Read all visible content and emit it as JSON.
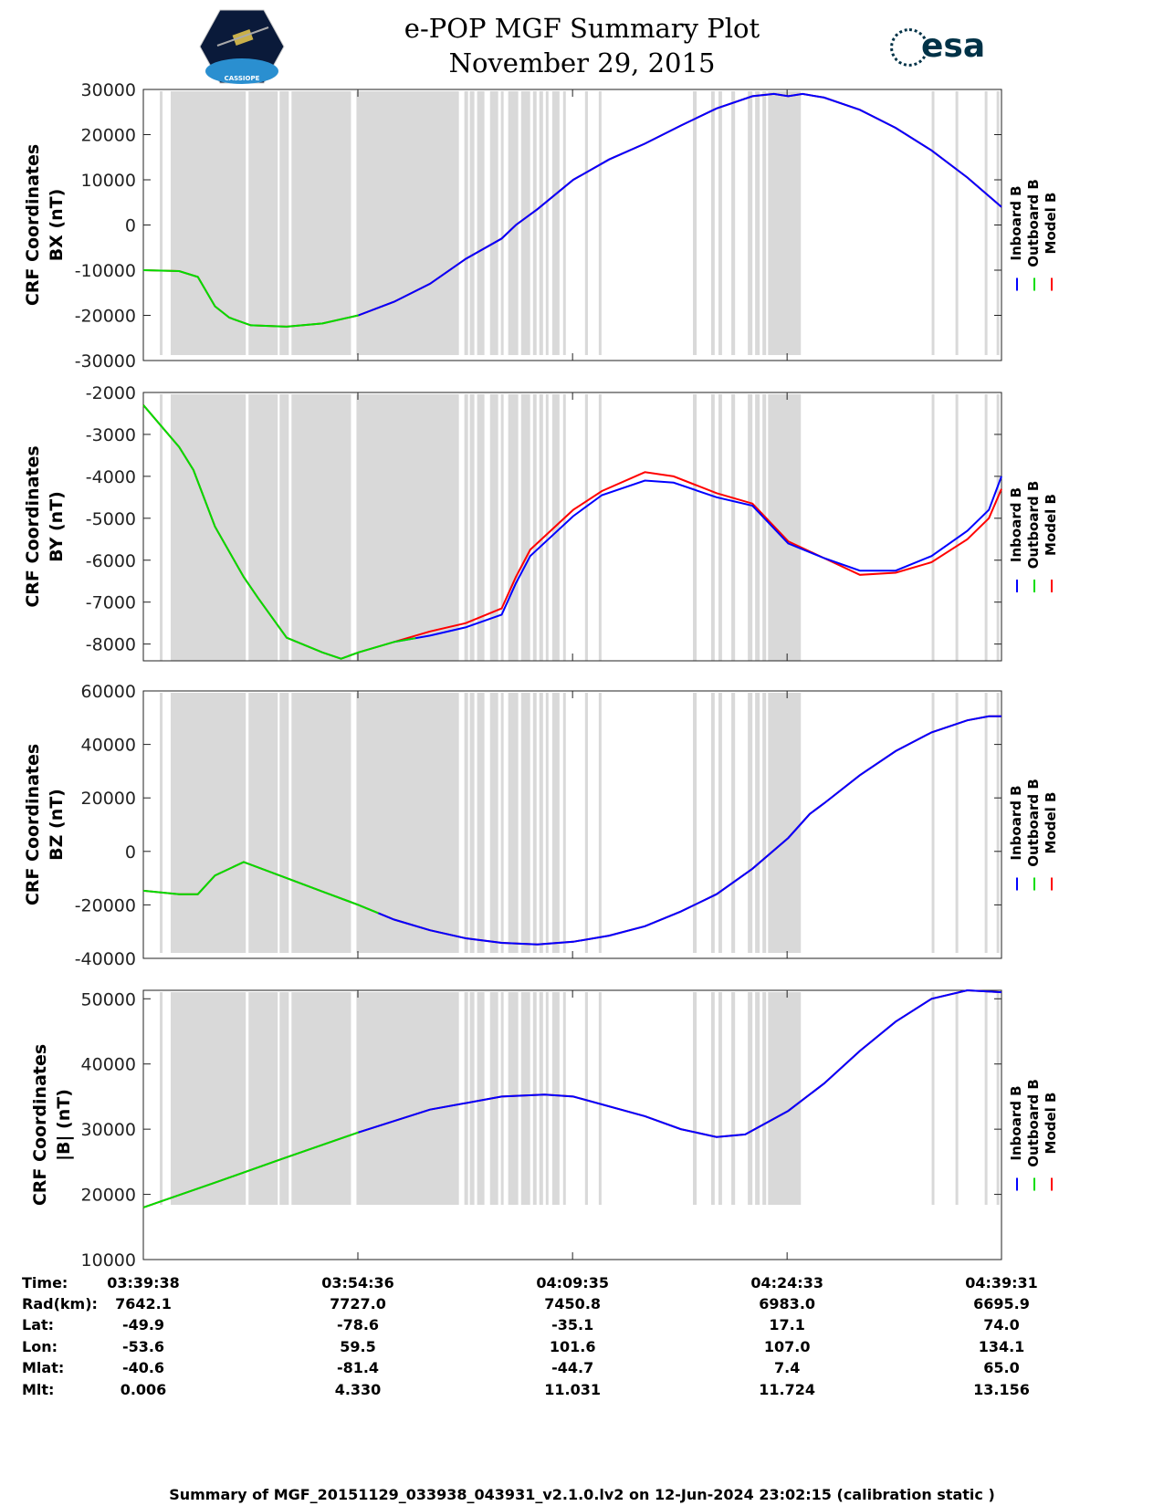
{
  "header": {
    "title_line1": "e-POP MGF Summary Plot",
    "title_line2": "November 29, 2015",
    "left_logo_text": "CASSIOPE",
    "right_logo_text": "esa"
  },
  "colors": {
    "inboard": "#0000ff",
    "outboard": "#00dd00",
    "model": "#ff0000",
    "gap_band": "#d9d9d9"
  },
  "chart_data": {
    "type": "line",
    "x_unit": "minutes since 03:39:38",
    "xlim": [
      0,
      59.88
    ],
    "x_tick_labels": [
      "03:39:38",
      "03:54:36",
      "04:09:35",
      "04:24:33",
      "04:39:31"
    ],
    "x_tick_values": [
      0,
      14.97,
      29.95,
      44.92,
      59.88
    ],
    "legend": [
      "Inboard B",
      "Outboard B",
      "Model B"
    ],
    "legend_placement": "right",
    "gray_bands": [
      [
        1.15,
        1.34
      ],
      [
        1.91,
        7.15
      ],
      [
        7.34,
        9.38
      ],
      [
        9.51,
        10.15
      ],
      [
        10.34,
        14.49
      ],
      [
        14.87,
        22.02
      ],
      [
        22.4,
        22.66
      ],
      [
        22.78,
        23.1
      ],
      [
        23.29,
        23.8
      ],
      [
        24.19,
        24.76
      ],
      [
        24.95,
        25.14
      ],
      [
        25.46,
        26.16
      ],
      [
        26.36,
        26.99
      ],
      [
        27.19,
        27.44
      ],
      [
        27.63,
        27.89
      ],
      [
        28.08,
        28.27
      ],
      [
        28.53,
        29.04
      ],
      [
        29.29,
        29.48
      ],
      [
        30.82,
        31.02
      ],
      [
        31.78,
        31.97
      ],
      [
        38.35,
        38.61
      ],
      [
        39.62,
        39.87
      ],
      [
        40.13,
        40.38
      ],
      [
        41.03,
        41.29
      ],
      [
        42.18,
        42.5
      ],
      [
        42.69,
        43.01
      ],
      [
        43.2,
        43.46
      ],
      [
        43.59,
        45.88
      ],
      [
        55.01,
        55.2
      ],
      [
        56.67,
        56.86
      ],
      [
        58.71,
        58.9
      ],
      [
        59.54,
        59.73
      ]
    ],
    "panels": [
      {
        "ylabel1": "CRF Coordinates",
        "ylabel2": "BX (nT)",
        "ylim": [
          -30000,
          30000
        ],
        "yticks": [
          30000,
          20000,
          10000,
          0,
          -10000,
          -20000,
          -30000
        ],
        "x": [
          0,
          2.5,
          3.8,
          5,
          6,
          7.5,
          10,
          12.5,
          15,
          17.5,
          20,
          22.5,
          25,
          26,
          27.5,
          30,
          32.5,
          35,
          37.5,
          40,
          42.5,
          44,
          45,
          46,
          47.5,
          50,
          52.5,
          55,
          57.5,
          59.88
        ],
        "model": [
          -10000,
          -10200,
          -11500,
          -18000,
          -20500,
          -22200,
          -22500,
          -21800,
          -20000,
          -17000,
          -13000,
          -7500,
          -3000,
          0,
          3500,
          10000,
          14500,
          18000,
          22000,
          25800,
          28500,
          29000,
          28500,
          29000,
          28200,
          25500,
          21500,
          16500,
          10500,
          4000
        ],
        "outboard_end": 15.0,
        "inboard_start": 15.0,
        "inboard_offset": []
      },
      {
        "ylabel1": "CRF Coordinates",
        "ylabel2": "BY (nT)",
        "ylim": [
          -8400,
          -2000
        ],
        "yticks": [
          -2000,
          -3000,
          -4000,
          -5000,
          -6000,
          -7000,
          -8000
        ],
        "x": [
          0,
          2.5,
          3.5,
          5,
          7,
          8,
          10,
          12.5,
          13.8,
          15,
          17.5,
          20,
          22.5,
          25,
          26,
          27,
          30,
          32,
          35,
          37,
          40,
          42.5,
          45,
          47.5,
          50,
          52.5,
          55,
          57.5,
          59,
          59.88
        ],
        "model": [
          -2300,
          -3300,
          -3850,
          -5200,
          -6400,
          -6900,
          -7850,
          -8200,
          -8350,
          -8200,
          -7950,
          -7700,
          -7500,
          -7150,
          -6400,
          -5750,
          -4800,
          -4350,
          -3900,
          -4000,
          -4400,
          -4650,
          -5550,
          -5950,
          -6350,
          -6300,
          -6050,
          -5500,
          -5000,
          -4300
        ],
        "inboard": [
          -2300,
          -3300,
          -3850,
          -5200,
          -6400,
          -6900,
          -7850,
          -8200,
          -8350,
          -8200,
          -7950,
          -7800,
          -7600,
          -7300,
          -6550,
          -5900,
          -4950,
          -4450,
          -4100,
          -4150,
          -4500,
          -4700,
          -5600,
          -5950,
          -6250,
          -6250,
          -5900,
          -5300,
          -4800,
          -4000
        ],
        "outboard_end": 19.0,
        "inboard_start": 17.5
      },
      {
        "ylabel1": "CRF Coordinates",
        "ylabel2": "BZ (nT)",
        "ylim": [
          -40000,
          60000
        ],
        "yticks": [
          60000,
          40000,
          20000,
          0,
          -20000,
          -40000
        ],
        "x": [
          0,
          2.5,
          3.8,
          5,
          7,
          10,
          12.5,
          15,
          17.5,
          20,
          22.5,
          25,
          27.5,
          30,
          32.5,
          35,
          37.5,
          40,
          42.5,
          45,
          46.5,
          47.5,
          50,
          52.5,
          55,
          57.5,
          59,
          59.88
        ],
        "model": [
          -14700,
          -16000,
          -16000,
          -9000,
          -4000,
          -10000,
          -15000,
          -20000,
          -25500,
          -29500,
          -32500,
          -34200,
          -34800,
          -33800,
          -31500,
          -28000,
          -22500,
          -16000,
          -6500,
          5000,
          14000,
          18000,
          28500,
          37500,
          44500,
          49000,
          50500,
          50500
        ],
        "outboard_end": 16.4,
        "inboard_start": 16.4
      },
      {
        "ylabel1": "CRF Coordinates",
        "ylabel2": "|B| (nT)",
        "ylim": [
          10000,
          51300
        ],
        "yticks": [
          50000,
          40000,
          30000,
          20000,
          10000
        ],
        "x": [
          0,
          5,
          10,
          15,
          20,
          25,
          28,
          30,
          35,
          37.5,
          40,
          42,
          45,
          47.5,
          50,
          52.5,
          55,
          57.5,
          59.88
        ],
        "model": [
          18000,
          21800,
          25700,
          29500,
          33000,
          35000,
          35300,
          35000,
          32000,
          30000,
          28800,
          29200,
          32800,
          37000,
          42000,
          46500,
          50000,
          51300,
          51000
        ],
        "outboard_end": 15.0,
        "inboard_start": 15.0
      }
    ]
  },
  "table": {
    "row_labels": [
      "Time:",
      "Rad(km):",
      "Lat:",
      "Lon:",
      "Mlat:",
      "Mlt:"
    ],
    "columns": [
      [
        "03:39:38",
        "7642.1",
        "-49.9",
        "-53.6",
        "-40.6",
        "0.006"
      ],
      [
        "03:54:36",
        "7727.0",
        "-78.6",
        "59.5",
        "-81.4",
        "4.330"
      ],
      [
        "04:09:35",
        "7450.8",
        "-35.1",
        "101.6",
        "-44.7",
        "11.031"
      ],
      [
        "04:24:33",
        "6983.0",
        "17.1",
        "107.0",
        "7.4",
        "11.724"
      ],
      [
        "04:39:31",
        "6695.9",
        "74.0",
        "134.1",
        "65.0",
        "13.156"
      ]
    ]
  },
  "footer": "Summary of MGF_20151129_033938_043931_v2.1.0.lv2 on 12-Jun-2024 23:02:15 (calibration static )"
}
